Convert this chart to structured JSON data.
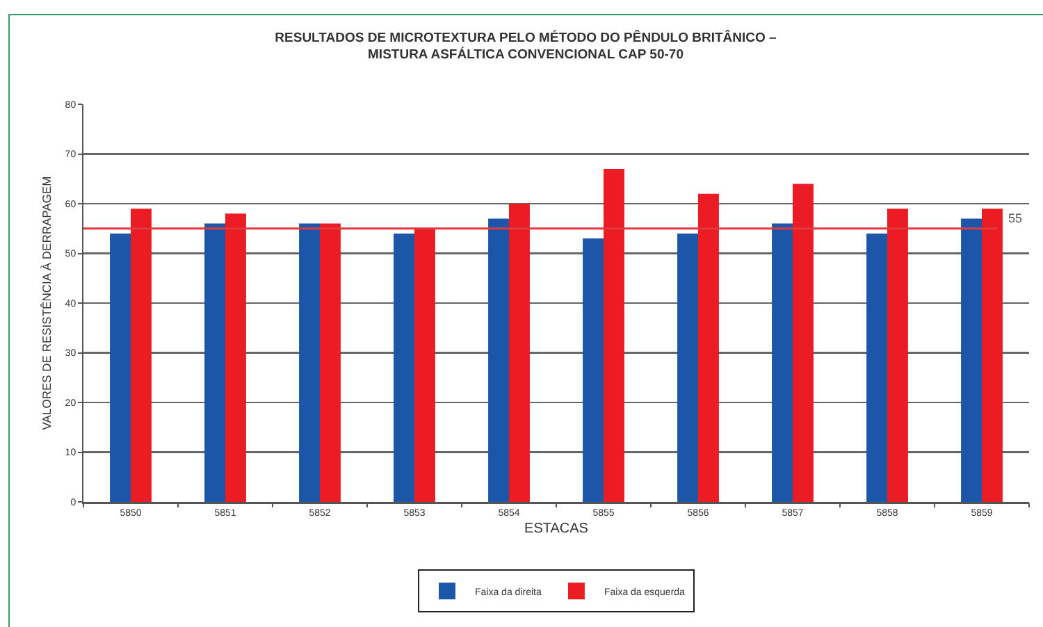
{
  "chart_data": {
    "type": "bar",
    "title": "RESULTADOS DE MICROTEXTURA PELO MÉTODO DO PÊNDULO BRITÂNICO –\nMISTURA ASFÁLTICA CONVENCIONAL CAP 50-70",
    "xlabel": "ESTACAS",
    "ylabel": "VALORES DE RESISTÊNCIA À DERRAPAGEM",
    "categories": [
      "5850",
      "5851",
      "5852",
      "5853",
      "5854",
      "5855",
      "5856",
      "5857",
      "5858",
      "5859"
    ],
    "series": [
      {
        "name": "Faixa da direita",
        "color": "#1c56a8",
        "values": [
          54,
          56,
          56,
          54,
          57,
          53,
          54,
          56,
          54,
          57
        ]
      },
      {
        "name": "Faixa da esquerda",
        "color": "#ec1c24",
        "values": [
          59,
          58,
          56,
          55,
          60,
          67,
          62,
          64,
          59,
          59
        ]
      }
    ],
    "ylim": [
      0,
      80
    ],
    "yticks": [
      0,
      10,
      20,
      30,
      40,
      50,
      60,
      70,
      80
    ],
    "grid": "y",
    "legend": "bottom",
    "ref_lines": [
      {
        "axis": "y",
        "value": 55,
        "label": "55",
        "color": "#e0393e"
      }
    ]
  }
}
